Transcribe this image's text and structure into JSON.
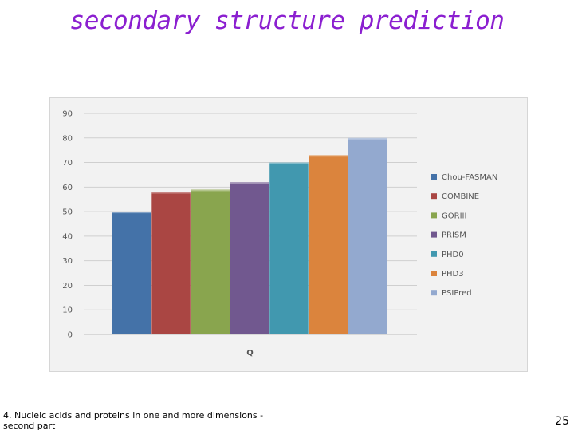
{
  "slide": {
    "title": "secondary structure prediction",
    "footer": "4. Nucleic acids and proteins in one and more dimensions - second part",
    "page_number": "25"
  },
  "chart_data": {
    "type": "bar",
    "title": "",
    "xlabel": "Q",
    "ylabel": "",
    "ylim": [
      0,
      90
    ],
    "yticks": [
      0,
      10,
      20,
      30,
      40,
      50,
      60,
      70,
      80,
      90
    ],
    "grid": true,
    "legend_position": "right",
    "categories": [
      "Q"
    ],
    "series": [
      {
        "name": "Chou-FASMAN",
        "values": [
          50
        ],
        "color": "#4472a8"
      },
      {
        "name": "COMBINE",
        "values": [
          58
        ],
        "color": "#aa4643"
      },
      {
        "name": "GORIII",
        "values": [
          59
        ],
        "color": "#89a54e"
      },
      {
        "name": "PRISM",
        "values": [
          62
        ],
        "color": "#71588f"
      },
      {
        "name": "PHD0",
        "values": [
          70
        ],
        "color": "#4198af"
      },
      {
        "name": "PHD3",
        "values": [
          73
        ],
        "color": "#db843d"
      },
      {
        "name": "PSIPred",
        "values": [
          80
        ],
        "color": "#93a9cf"
      }
    ]
  }
}
